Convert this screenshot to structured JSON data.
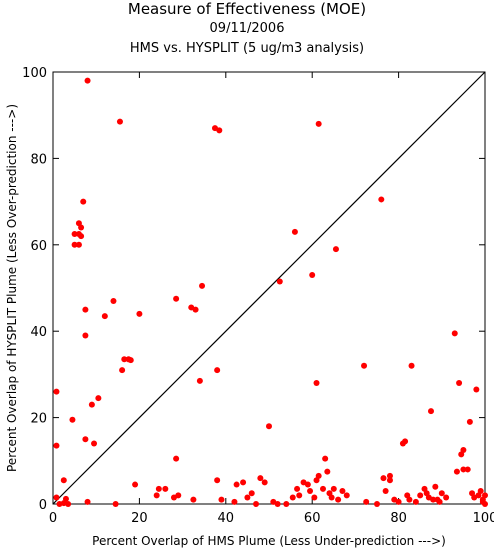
{
  "chart_data": {
    "type": "scatter",
    "title": "Measure of Effectiveness (MOE)",
    "date": "09/11/2006",
    "subtitle": "HMS vs. HYSPLIT  (5 ug/m3 analysis)",
    "xlabel": "Percent Overlap of HMS Plume (Less Under-prediction --->)",
    "ylabel": "Percent Overlap of HYSPLIT Plume (Less Over-prediction --->)",
    "xlim": [
      0,
      100
    ],
    "ylim": [
      0,
      100
    ],
    "xticks": [
      0,
      20,
      40,
      60,
      80,
      100
    ],
    "yticks": [
      0,
      20,
      40,
      60,
      80,
      100
    ],
    "grid": false,
    "reference_line": "y = x",
    "point_color": "#ff0000",
    "line_color": "#000000",
    "points": [
      [
        0.8,
        26
      ],
      [
        0.8,
        13.5
      ],
      [
        0.8,
        1.5
      ],
      [
        2.5,
        5.5
      ],
      [
        2.5,
        0.2
      ],
      [
        3,
        1.2
      ],
      [
        3.5,
        0
      ],
      [
        1.5,
        0
      ],
      [
        4.5,
        19.5
      ],
      [
        5,
        60
      ],
      [
        5,
        62.5
      ],
      [
        6,
        60
      ],
      [
        6,
        62.5
      ],
      [
        6,
        65
      ],
      [
        6.5,
        64
      ],
      [
        6.5,
        62
      ],
      [
        7,
        70
      ],
      [
        7.5,
        45
      ],
      [
        7.5,
        39
      ],
      [
        7.5,
        15
      ],
      [
        8,
        98
      ],
      [
        8,
        0.5
      ],
      [
        9,
        23
      ],
      [
        9.5,
        14
      ],
      [
        10.5,
        24.5
      ],
      [
        12,
        43.5
      ],
      [
        14,
        47
      ],
      [
        14.5,
        0
      ],
      [
        15.5,
        88.5
      ],
      [
        16,
        31
      ],
      [
        16.5,
        33.5
      ],
      [
        17.5,
        33.5
      ],
      [
        18,
        33.3
      ],
      [
        19,
        4.5
      ],
      [
        20,
        44
      ],
      [
        24,
        2
      ],
      [
        24.5,
        3.5
      ],
      [
        26,
        3.5
      ],
      [
        28.5,
        47.5
      ],
      [
        28.5,
        10.5
      ],
      [
        28,
        1.5
      ],
      [
        29,
        2
      ],
      [
        32,
        45.5
      ],
      [
        33,
        45
      ],
      [
        32.5,
        1
      ],
      [
        34,
        28.5
      ],
      [
        34.5,
        50.5
      ],
      [
        37.5,
        87
      ],
      [
        38.5,
        86.5
      ],
      [
        38,
        31
      ],
      [
        38,
        5.5
      ],
      [
        39,
        1
      ],
      [
        42,
        0.5
      ],
      [
        42.5,
        4.5
      ],
      [
        44,
        5
      ],
      [
        45,
        1.5
      ],
      [
        46,
        2.5
      ],
      [
        47,
        0
      ],
      [
        48,
        6
      ],
      [
        49,
        5
      ],
      [
        50,
        18
      ],
      [
        51,
        0.5
      ],
      [
        52,
        0
      ],
      [
        52.5,
        51.5
      ],
      [
        54,
        0
      ],
      [
        55.5,
        1.5
      ],
      [
        56,
        63
      ],
      [
        56.5,
        3.5
      ],
      [
        57,
        2
      ],
      [
        58,
        5
      ],
      [
        59,
        4.5
      ],
      [
        59.5,
        3
      ],
      [
        60,
        53
      ],
      [
        60.5,
        1.5
      ],
      [
        61,
        5.5
      ],
      [
        61.5,
        6.5
      ],
      [
        61.5,
        88
      ],
      [
        61,
        28
      ],
      [
        62.5,
        3.5
      ],
      [
        63,
        10.5
      ],
      [
        63.5,
        7.5
      ],
      [
        64,
        2.5
      ],
      [
        64.5,
        1.5
      ],
      [
        65,
        3.5
      ],
      [
        65.5,
        59
      ],
      [
        66,
        1
      ],
      [
        67,
        3
      ],
      [
        68,
        2
      ],
      [
        72,
        32
      ],
      [
        72.5,
        0.5
      ],
      [
        75,
        0
      ],
      [
        76,
        70.5
      ],
      [
        76.5,
        6
      ],
      [
        77,
        3
      ],
      [
        78,
        6.5
      ],
      [
        78,
        5.5
      ],
      [
        79,
        1
      ],
      [
        80,
        0.5
      ],
      [
        81,
        14
      ],
      [
        81.5,
        14.5
      ],
      [
        82,
        2
      ],
      [
        82.5,
        1
      ],
      [
        83,
        32
      ],
      [
        84,
        0.5
      ],
      [
        85,
        2
      ],
      [
        86,
        3.5
      ],
      [
        86.5,
        2.5
      ],
      [
        87,
        1.5
      ],
      [
        87.5,
        21.5
      ],
      [
        88,
        1
      ],
      [
        88.5,
        4
      ],
      [
        89,
        1
      ],
      [
        89.5,
        0.5
      ],
      [
        90,
        2.5
      ],
      [
        91,
        1.5
      ],
      [
        93,
        39.5
      ],
      [
        93.5,
        7.5
      ],
      [
        94,
        28
      ],
      [
        94.5,
        11.5
      ],
      [
        95,
        12.5
      ],
      [
        95,
        8
      ],
      [
        96,
        8
      ],
      [
        96.5,
        19
      ],
      [
        97,
        2.5
      ],
      [
        97.5,
        1.5
      ],
      [
        98,
        26.5
      ],
      [
        98.5,
        2
      ],
      [
        99,
        3
      ],
      [
        99.5,
        1
      ],
      [
        99.5,
        0.5
      ],
      [
        100,
        2
      ],
      [
        100,
        0
      ]
    ]
  }
}
